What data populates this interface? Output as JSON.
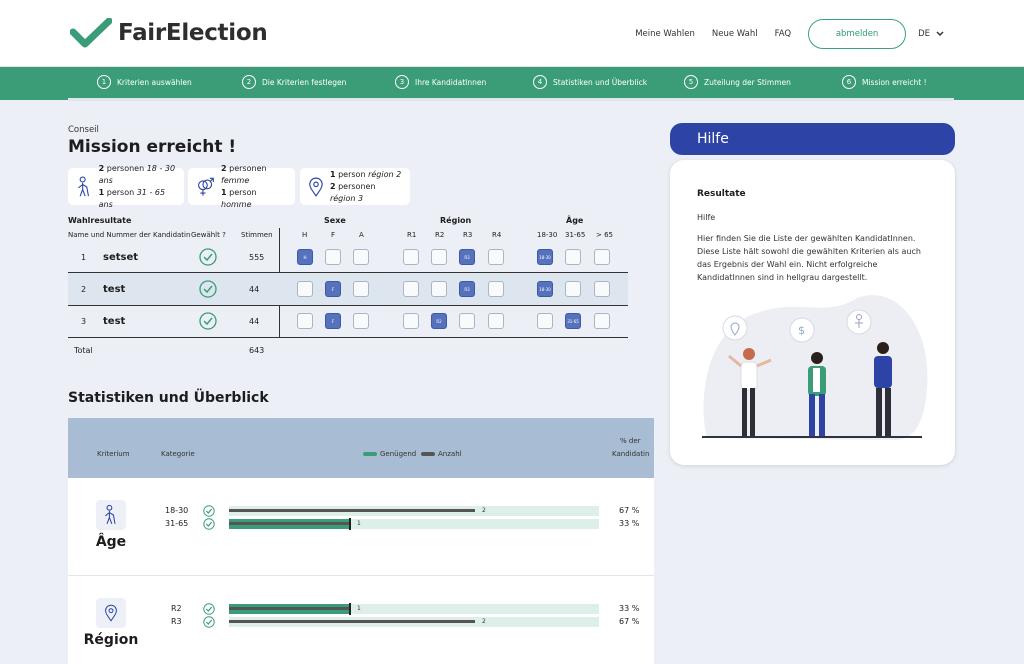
{
  "header": {
    "brand": "FairElection",
    "nav": [
      "Meine Wahlen",
      "Neue Wahl",
      "FAQ"
    ],
    "logout_label": "abmelden",
    "lang": "DE",
    "accent": "#3a9d77"
  },
  "steps": [
    {
      "num": "1",
      "label": "Kriterien auswählen"
    },
    {
      "num": "2",
      "label": "Die Kriterien festlegen"
    },
    {
      "num": "3",
      "label": "Ihre KandidatInnen"
    },
    {
      "num": "4",
      "label": "Statistiken und Überblick"
    },
    {
      "num": "5",
      "label": "Zuteilung der Stimmen"
    },
    {
      "num": "6",
      "label": "Mission erreicht !"
    }
  ],
  "page": {
    "subtitle": "Conseil",
    "title": "Mission erreicht !"
  },
  "summary": {
    "age": {
      "a_count": "2",
      "a_text": "personen",
      "a_em": "18 - 30 ans",
      "b_count": "1",
      "b_text": "person",
      "b_em": "31 - 65 ans"
    },
    "sex": {
      "a_count": "2",
      "a_text": "personen",
      "a_em": "femme",
      "b_count": "1",
      "b_text": "person",
      "b_em": "homme"
    },
    "region": {
      "a_count": "1",
      "a_text": "person",
      "a_em": "région 2",
      "b_count": "2",
      "b_text": "personen",
      "b_em": "région 3"
    }
  },
  "results": {
    "title": "Wahlresultate",
    "col_name": "Name und Nummer der Kandidatin",
    "col_elected": "Gewählt ?",
    "col_votes": "Stimmen",
    "group_sex": "Sexe",
    "group_region": "Région",
    "group_age": "Âge",
    "sex_cols": [
      "H",
      "F",
      "A"
    ],
    "region_cols": [
      "R1",
      "R2",
      "R3",
      "R4"
    ],
    "age_cols": [
      "18-30",
      "31-65",
      "> 65"
    ],
    "rows": [
      {
        "num": "1",
        "name": "setset",
        "votes": "555",
        "sex": "H",
        "region": "R3",
        "age": "18-30"
      },
      {
        "num": "2",
        "name": "test",
        "votes": "44",
        "sex": "F",
        "region": "R3",
        "age": "18-30"
      },
      {
        "num": "3",
        "name": "test",
        "votes": "44",
        "sex": "F",
        "region": "R2",
        "age": "31-65"
      }
    ],
    "total_label": "Total",
    "total_votes": "643"
  },
  "stats": {
    "title": "Statistiken und Überblick",
    "head_criterion": "Kriterium",
    "head_category": "Kategorie",
    "legend_sufficient": "Genügend",
    "legend_count": "Anzahl",
    "head_pct_1": "% der",
    "head_pct_2": "Kandidatin",
    "groups": [
      {
        "name": "Âge",
        "rows": [
          {
            "cat": "18-30",
            "count": "2",
            "pct": "67 %",
            "pct_value": 67,
            "sufficient_value": 67
          },
          {
            "cat": "31-65",
            "count": "1",
            "pct": "33 %",
            "pct_value": 33,
            "sufficient_value": 33
          }
        ]
      },
      {
        "name": "Région",
        "rows": [
          {
            "cat": "R2",
            "count": "1",
            "pct": "33 %",
            "pct_value": 33,
            "sufficient_value": 33
          },
          {
            "cat": "R3",
            "count": "2",
            "pct": "67 %",
            "pct_value": 67,
            "sufficient_value": 67
          }
        ]
      }
    ]
  },
  "help": {
    "pill": "Hilfe",
    "heading": "Resultate",
    "sub": "Hilfe",
    "body": "Hier finden Sie die Liste der gewählten KandidatInnen. Diese Liste hält sowohl die gewählten Kriterien als auch das Ergebnis der Wahl ein. Nicht erfolgreiche KandidatInnen sind in hellgrau dargestellt."
  }
}
